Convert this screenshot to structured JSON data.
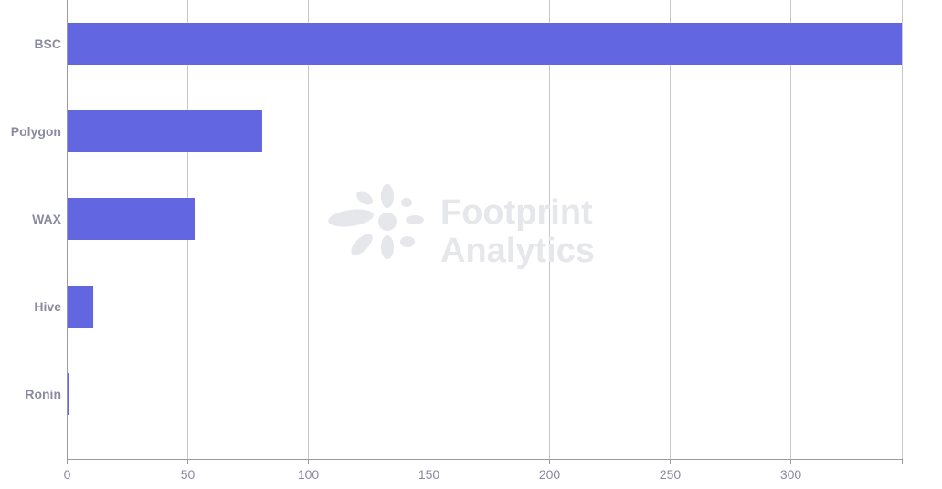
{
  "chart_data": {
    "type": "bar",
    "orientation": "horizontal",
    "categories": [
      "BSC",
      "Polygon",
      "WAX",
      "Hive",
      "Ronin"
    ],
    "values": [
      346,
      81,
      53,
      11,
      1
    ],
    "xlim": [
      0,
      346
    ],
    "xticks": [
      0,
      50,
      100,
      150,
      200,
      250,
      300
    ],
    "grid": true,
    "bar_color": "#6366e1",
    "title": "",
    "xlabel": "",
    "ylabel": ""
  },
  "watermark": {
    "line1": "Footprint",
    "line2": "Analytics",
    "icon": "footprint-logo-icon"
  },
  "colors": {
    "grid": "#c8c8cc",
    "axis": "#9a9aa3",
    "label": "#8a8aa0",
    "watermark": "#e6e7ea"
  }
}
